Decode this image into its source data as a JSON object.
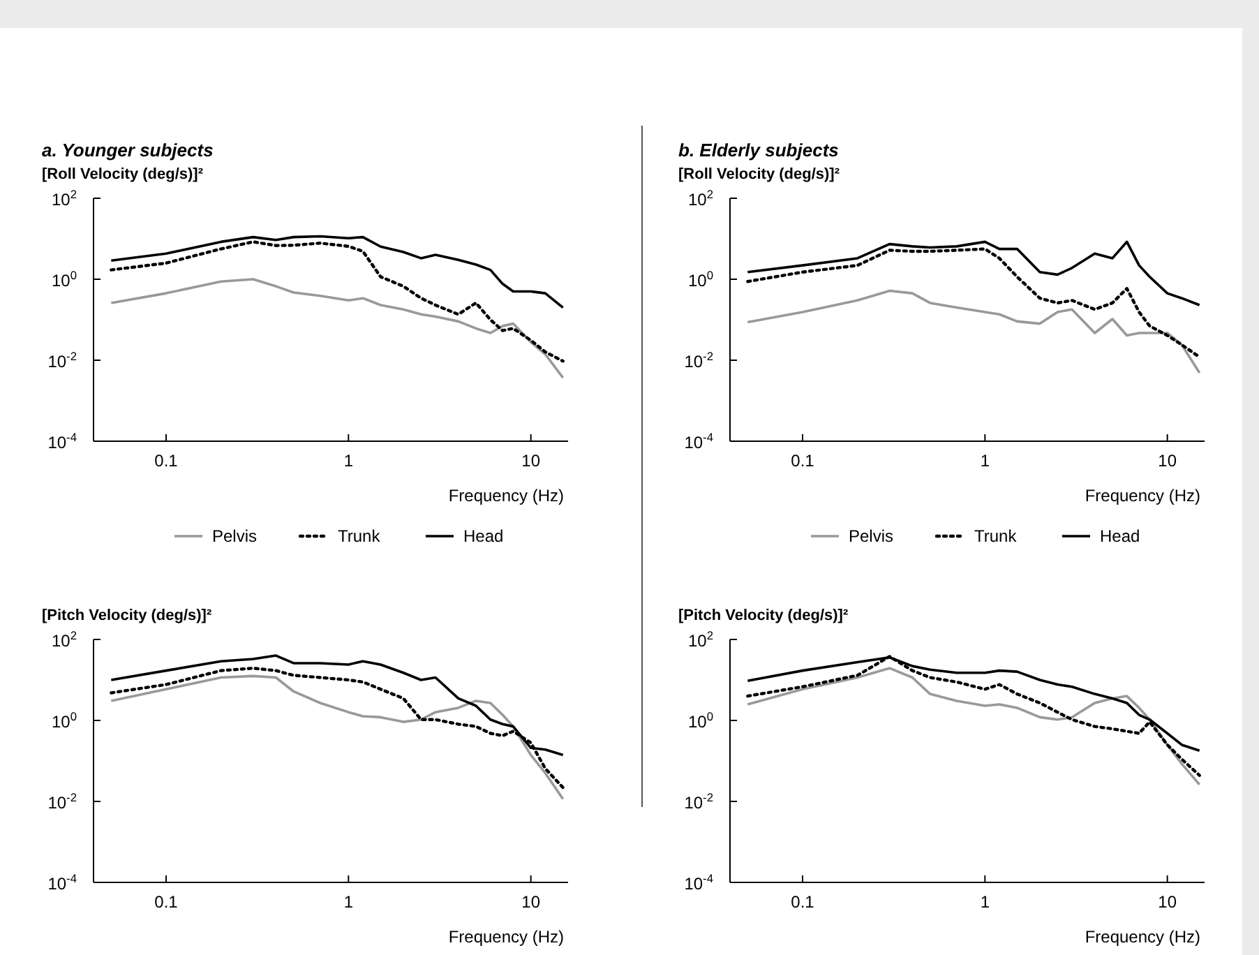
{
  "chart_data": [
    {
      "type": "line",
      "title": "a. Younger subjects",
      "ylabel": "[Roll Velocity (deg/s)]²",
      "xlabel": "Frequency (Hz)",
      "log": "xy",
      "grid": false,
      "legend": "bottom",
      "xlim": [
        0.04,
        16
      ],
      "xticks": [
        0.1,
        1,
        10
      ],
      "ylim": [
        0.0001,
        100
      ],
      "yticks": [
        {
          "value": 0.0001,
          "label": "10$^{-4}$"
        },
        {
          "value": 0.01,
          "label": "10$^{-2}$"
        },
        {
          "value": 1,
          "label": "10$^{0}$"
        },
        {
          "value": 100,
          "label": "10$^{2}$"
        }
      ],
      "x": [
        0.05,
        0.1,
        0.2,
        0.3,
        0.4,
        0.5,
        0.7,
        1,
        1.2,
        1.5,
        2,
        2.5,
        3,
        4,
        5,
        6,
        7,
        8,
        10,
        12,
        15
      ],
      "series": [
        {
          "name": "Pelvis",
          "color": "#999999",
          "line_style": "solid",
          "values": [
            0.26,
            0.45,
            0.88,
            1.0,
            0.67,
            0.47,
            0.39,
            0.3,
            0.34,
            0.23,
            0.18,
            0.136,
            0.12,
            0.091,
            0.061,
            0.047,
            0.07,
            0.08,
            0.028,
            0.014,
            0.0037
          ]
        },
        {
          "name": "Trunk",
          "color": "#000000",
          "line_style": "dotted",
          "values": [
            1.7,
            2.5,
            5.6,
            8.4,
            6.8,
            6.9,
            7.8,
            6.5,
            4.9,
            1.15,
            0.67,
            0.34,
            0.23,
            0.136,
            0.26,
            0.1,
            0.054,
            0.061,
            0.031,
            0.016,
            0.0095
          ]
        },
        {
          "name": "Head",
          "color": "#000000",
          "line_style": "solid",
          "values": [
            2.9,
            4.3,
            8.4,
            11,
            9.3,
            11,
            11.5,
            10.3,
            11,
            6.4,
            4.7,
            3.3,
            4,
            3,
            2.3,
            1.7,
            0.77,
            0.5,
            0.5,
            0.45,
            0.2
          ]
        }
      ]
    },
    {
      "type": "line",
      "title": "b. Elderly subjects",
      "ylabel": "[Roll Velocity (deg/s)]²",
      "xlabel": "Frequency (Hz)",
      "log": "xy",
      "grid": false,
      "legend": "bottom",
      "xlim": [
        0.04,
        16
      ],
      "xticks": [
        0.1,
        1,
        10
      ],
      "ylim": [
        0.0001,
        100
      ],
      "yticks": [
        {
          "value": 0.0001,
          "label": "10$^{-4}$"
        },
        {
          "value": 0.01,
          "label": "10$^{-2}$"
        },
        {
          "value": 1,
          "label": "10$^{0}$"
        },
        {
          "value": 100,
          "label": "10$^{2}$"
        }
      ],
      "x": [
        0.05,
        0.1,
        0.2,
        0.3,
        0.4,
        0.5,
        0.7,
        1,
        1.2,
        1.5,
        2,
        2.5,
        3,
        4,
        5,
        6,
        7,
        8,
        10,
        12,
        15
      ],
      "series": [
        {
          "name": "Pelvis",
          "color": "#999999",
          "line_style": "solid",
          "values": [
            0.087,
            0.155,
            0.3,
            0.52,
            0.45,
            0.26,
            0.2,
            0.155,
            0.136,
            0.091,
            0.08,
            0.155,
            0.18,
            0.047,
            0.104,
            0.041,
            0.047,
            0.047,
            0.047,
            0.024,
            0.0049
          ]
        },
        {
          "name": "Trunk",
          "color": "#000000",
          "line_style": "dotted",
          "values": [
            0.88,
            1.5,
            2.2,
            5.2,
            4.9,
            4.9,
            5.2,
            5.6,
            3.3,
            1.15,
            0.34,
            0.26,
            0.3,
            0.18,
            0.26,
            0.59,
            0.155,
            0.07,
            0.041,
            0.024,
            0.012
          ]
        },
        {
          "name": "Head",
          "color": "#000000",
          "line_style": "solid",
          "values": [
            1.5,
            2.2,
            3.3,
            7.4,
            6.5,
            6.1,
            6.5,
            8.4,
            5.6,
            5.6,
            1.5,
            1.3,
            1.9,
            4.3,
            3.3,
            8.4,
            2.2,
            1.15,
            0.45,
            0.34,
            0.23
          ]
        }
      ]
    },
    {
      "type": "line",
      "ylabel": "[Pitch Velocity (deg/s)]²",
      "xlabel": "Frequency (Hz)",
      "log": "xy",
      "grid": false,
      "xlim": [
        0.04,
        16
      ],
      "xticks": [
        0.1,
        1,
        10
      ],
      "ylim": [
        0.0001,
        100
      ],
      "yticks": [
        {
          "value": 0.0001,
          "label": "10$^{-4}$"
        },
        {
          "value": 0.01,
          "label": "10$^{-2}$"
        },
        {
          "value": 1,
          "label": "10$^{0}$"
        },
        {
          "value": 100,
          "label": "10$^{2}$"
        }
      ],
      "x": [
        0.05,
        0.1,
        0.2,
        0.3,
        0.4,
        0.5,
        0.7,
        1,
        1.2,
        1.5,
        2,
        2.5,
        3,
        4,
        5,
        6,
        7,
        8,
        10,
        12,
        15
      ],
      "series": [
        {
          "color": "#999999",
          "line_style": "solid",
          "values": [
            3.05,
            5.9,
            11.5,
            12.5,
            11.5,
            5.2,
            2.7,
            1.6,
            1.27,
            1.2,
            0.92,
            1.05,
            1.6,
            2.05,
            3.05,
            2.7,
            1.37,
            0.71,
            0.14,
            0.05,
            0.0115
          ]
        },
        {
          "color": "#000000",
          "line_style": "dotted",
          "values": [
            4.8,
            7.7,
            17,
            19.5,
            17,
            13,
            11.5,
            10,
            8.9,
            5.9,
            3.5,
            1.05,
            1.05,
            0.81,
            0.71,
            0.48,
            0.42,
            0.54,
            0.28,
            0.065,
            0.022
          ]
        },
        {
          "color": "#000000",
          "line_style": "solid",
          "values": [
            10,
            17,
            29,
            33,
            40,
            26,
            26,
            24,
            29,
            24,
            15,
            10,
            11.5,
            3.5,
            2.3,
            1.05,
            0.81,
            0.71,
            0.21,
            0.19,
            0.14
          ]
        }
      ]
    },
    {
      "type": "line",
      "ylabel": "[Pitch Velocity (deg/s)]²",
      "xlabel": "Frequency (Hz)",
      "log": "xy",
      "grid": false,
      "xlim": [
        0.04,
        16
      ],
      "xticks": [
        0.1,
        1,
        10
      ],
      "ylim": [
        0.0001,
        100
      ],
      "yticks": [
        {
          "value": 0.0001,
          "label": "10$^{-4}$"
        },
        {
          "value": 0.01,
          "label": "10$^{-2}$"
        },
        {
          "value": 1,
          "label": "10$^{0}$"
        },
        {
          "value": 100,
          "label": "10$^{2}$"
        }
      ],
      "x": [
        0.05,
        0.1,
        0.2,
        0.3,
        0.4,
        0.5,
        0.7,
        1,
        1.2,
        1.5,
        2,
        2.5,
        3,
        4,
        5,
        6,
        7,
        8,
        10,
        12,
        15
      ],
      "series": [
        {
          "color": "#999999",
          "line_style": "solid",
          "values": [
            2.5,
            5.9,
            11.5,
            19.5,
            11.5,
            4.5,
            3.05,
            2.3,
            2.5,
            2.05,
            1.2,
            1.05,
            1.2,
            2.7,
            3.5,
            4,
            2.05,
            1.05,
            0.25,
            0.085,
            0.026
          ]
        },
        {
          "color": "#000000",
          "line_style": "dotted",
          "values": [
            4,
            6.8,
            13,
            38,
            17,
            11.5,
            8.9,
            5.9,
            7.7,
            4.5,
            2.7,
            1.6,
            1.05,
            0.71,
            0.62,
            0.54,
            0.48,
            0.92,
            0.25,
            0.11,
            0.044
          ]
        },
        {
          "color": "#000000",
          "line_style": "solid",
          "values": [
            9.5,
            17,
            27.5,
            36,
            22,
            18,
            15,
            15,
            17,
            16,
            10,
            7.7,
            6.8,
            4.5,
            3.5,
            2.7,
            1.37,
            1.05,
            0.48,
            0.25,
            0.18
          ]
        }
      ]
    }
  ]
}
